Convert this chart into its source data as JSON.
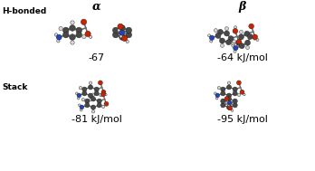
{
  "title_alpha": "α",
  "title_beta": "β",
  "label_hbonded": "H-bonded",
  "label_stack": "Stack",
  "energy_alpha_hbond": "-67",
  "energy_beta_hbond": "-64 kJ/mol",
  "energy_alpha_stack": "-81 kJ/mol",
  "energy_beta_stack": "-95 kJ/mol",
  "bg_color": "#ffffff",
  "C_color": "#484848",
  "O_color": "#cc2200",
  "N_color": "#2244bb",
  "H_color": "#d8d8d8",
  "bond_color": "#666666",
  "text_color": "#000000"
}
